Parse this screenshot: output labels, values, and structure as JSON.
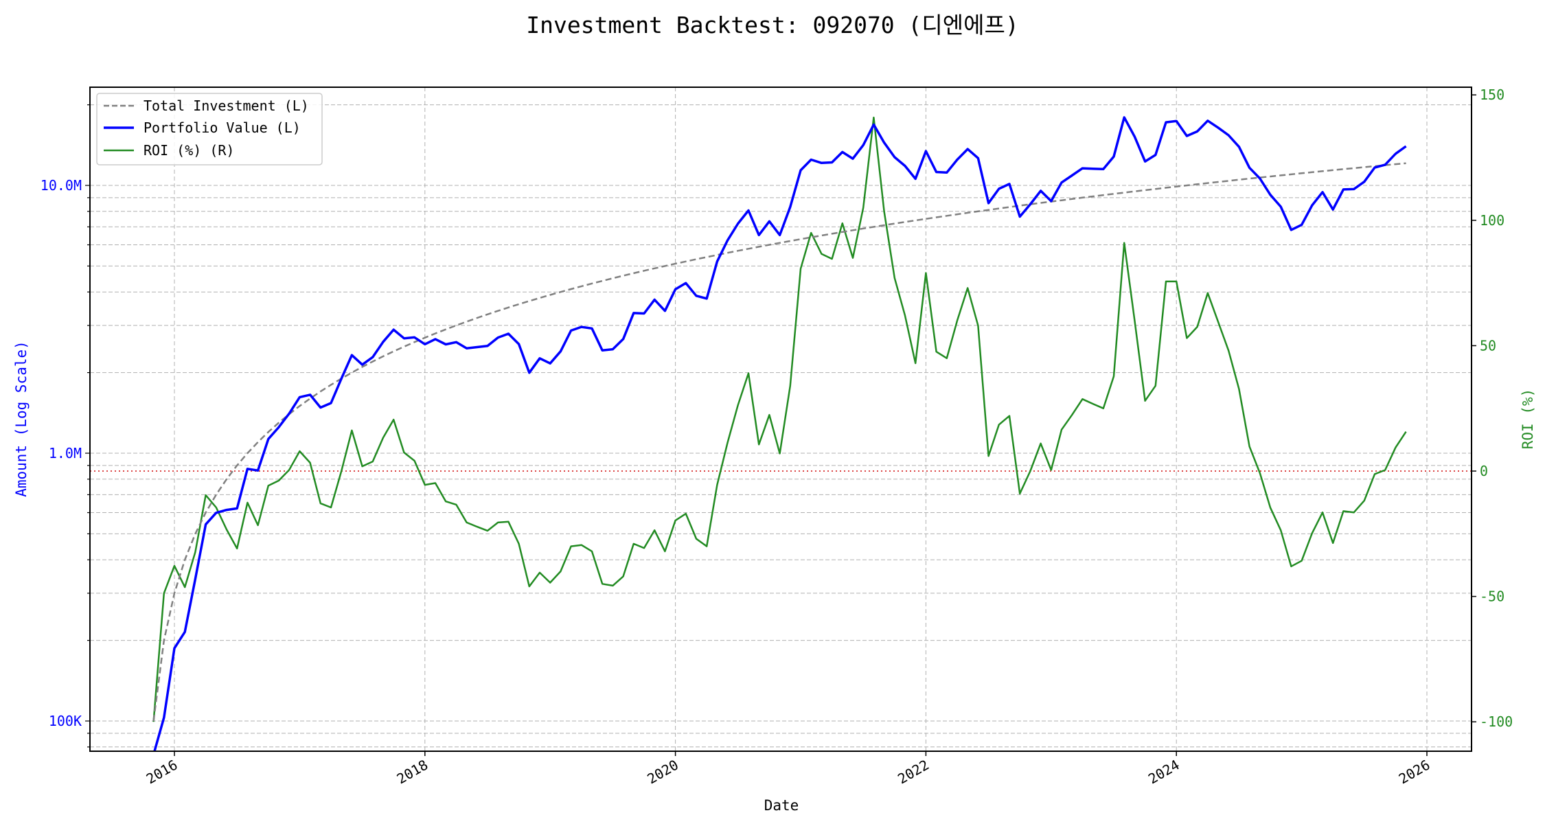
{
  "chart_data": {
    "type": "line",
    "title": "Investment Backtest: 092070 (디엔에프)",
    "xlabel": "Date",
    "ylabel_left": "Amount (Log Scale)",
    "ylabel_right": "ROI (%)",
    "y_left_scale": "log",
    "y_left_ticks": [
      {
        "value": 100000,
        "label": "100K"
      },
      {
        "value": 1000000,
        "label": "1.0M"
      },
      {
        "value": 10000000,
        "label": "10.0M"
      }
    ],
    "y_right_ticks": [
      -100,
      -50,
      0,
      50,
      100,
      150
    ],
    "x_ticks": [
      "2016",
      "2018",
      "2020",
      "2022",
      "2024",
      "2026"
    ],
    "xlim": [
      "2015-05",
      "2026-05"
    ],
    "ylim_left": [
      77600,
      23300000
    ],
    "ylim_right": [
      -112,
      153
    ],
    "grid": true,
    "legend_position": "top-left",
    "reference_line": {
      "axis": "right",
      "value": 0,
      "color": "#d62728",
      "style": "dotted"
    },
    "colors": {
      "total_investment": "#808080",
      "portfolio": "#0000ff",
      "roi": "#228b22",
      "left_axis": "#0000ff",
      "right_axis": "#228b22"
    },
    "dates": [
      "2015-11",
      "2015-12",
      "2016-01",
      "2016-02",
      "2016-03",
      "2016-04",
      "2016-05",
      "2016-06",
      "2016-07",
      "2016-08",
      "2016-09",
      "2016-10",
      "2016-11",
      "2016-12",
      "2017-01",
      "2017-02",
      "2017-03",
      "2017-04",
      "2017-05",
      "2017-06",
      "2017-07",
      "2017-08",
      "2017-09",
      "2017-10",
      "2017-11",
      "2017-12",
      "2018-01",
      "2018-02",
      "2018-03",
      "2018-04",
      "2018-05",
      "2018-06",
      "2018-07",
      "2018-08",
      "2018-09",
      "2018-10",
      "2018-11",
      "2018-12",
      "2019-01",
      "2019-02",
      "2019-03",
      "2019-04",
      "2019-05",
      "2019-06",
      "2019-07",
      "2019-08",
      "2019-09",
      "2019-10",
      "2019-11",
      "2019-12",
      "2020-01",
      "2020-02",
      "2020-03",
      "2020-04",
      "2020-05",
      "2020-06",
      "2020-07",
      "2020-08",
      "2020-09",
      "2020-10",
      "2020-11",
      "2020-12",
      "2021-01",
      "2021-02",
      "2021-03",
      "2021-04",
      "2021-05",
      "2021-06",
      "2021-07",
      "2021-08",
      "2021-09",
      "2021-10",
      "2021-11",
      "2021-12",
      "2022-01",
      "2022-02",
      "2022-03",
      "2022-04",
      "2022-05",
      "2022-06",
      "2022-07",
      "2022-08",
      "2022-09",
      "2022-10",
      "2022-11",
      "2022-12",
      "2023-01",
      "2023-02",
      "2023-03",
      "2023-04",
      "2023-05",
      "2023-06",
      "2023-07",
      "2023-08",
      "2023-09",
      "2023-10",
      "2023-11",
      "2023-12",
      "2024-01",
      "2024-02",
      "2024-03",
      "2024-04",
      "2024-05",
      "2024-06",
      "2024-07",
      "2024-08",
      "2024-09",
      "2024-10",
      "2024-11",
      "2024-12",
      "2025-01",
      "2025-02",
      "2025-03",
      "2025-04",
      "2025-05",
      "2025-06",
      "2025-07",
      "2025-08",
      "2025-09",
      "2025-10",
      "2025-11"
    ],
    "series": [
      {
        "name": "Total Investment (L)",
        "axis": "left",
        "style": "dashed",
        "values": [
          100000,
          200000,
          300000,
          400000,
          500000,
          600000,
          700000,
          800000,
          900000,
          1000000,
          1100000,
          1200000,
          1300000,
          1400000,
          1500000,
          1600000,
          1700000,
          1800000,
          1900000,
          2000000,
          2100000,
          2200000,
          2300000,
          2400000,
          2500000,
          2600000,
          2700000,
          2800000,
          2900000,
          3000000,
          3100000,
          3200000,
          3300000,
          3400000,
          3500000,
          3600000,
          3700000,
          3800000,
          3900000,
          4000000,
          4100000,
          4200000,
          4300000,
          4400000,
          4500000,
          4600000,
          4700000,
          4800000,
          4900000,
          5000000,
          5100000,
          5200000,
          5300000,
          5400000,
          5500000,
          5600000,
          5700000,
          5800000,
          5900000,
          6000000,
          6100000,
          6200000,
          6300000,
          6400000,
          6500000,
          6600000,
          6700000,
          6800000,
          6900000,
          7000000,
          7100000,
          7200000,
          7300000,
          7400000,
          7500000,
          7600000,
          7700000,
          7800000,
          7900000,
          8000000,
          8100000,
          8200000,
          8300000,
          8400000,
          8500000,
          8600000,
          8700000,
          8800000,
          8900000,
          9000000,
          9100000,
          9200000,
          9300000,
          9400000,
          9500000,
          9600000,
          9700000,
          9800000,
          9900000,
          10000000,
          10100000,
          10200000,
          10300000,
          10400000,
          10500000,
          10600000,
          10700000,
          10800000,
          10900000,
          11000000,
          11100000,
          11200000,
          11300000,
          11400000,
          11500000,
          11600000,
          11700000,
          11800000,
          11900000,
          12000000,
          12100000
        ]
      },
      {
        "name": "Portfolio Value (L)",
        "axis": "left",
        "style": "solid",
        "values": [
          0,
          103000,
          187000,
          215000,
          339000,
          542000,
          599000,
          614000,
          622000,
          874000,
          862000,
          1130000,
          1251000,
          1407000,
          1619000,
          1653000,
          1481000,
          1539000,
          1900000,
          2324000,
          2140000,
          2284000,
          2606000,
          2892000,
          2685000,
          2707000,
          2552000,
          2666000,
          2549000,
          2598000,
          2465000,
          2490000,
          2515000,
          2703000,
          2793000,
          2556000,
          1998000,
          2261000,
          2165000,
          2400000,
          2870000,
          2961000,
          2924000,
          2420000,
          2444000,
          2668000,
          3337000,
          3326000,
          3744000,
          3400000,
          4095000,
          4316000,
          3869000,
          3780000,
          5198000,
          6238000,
          7205000,
          8062000,
          6525000,
          7344000,
          6527000,
          8308000,
          11384000,
          12480000,
          12129000,
          12184000,
          13320000,
          12580000,
          14145000,
          16870000,
          14449000,
          12744000,
          11826000,
          10582000,
          13425000,
          11218000,
          11165000,
          12480000,
          13667000,
          12640000,
          8586000,
          9717000,
          10126000,
          7644000,
          8500000,
          9546000,
          8735000,
          10252000,
          10894000,
          11583000,
          11539000,
          11500000,
          12815000,
          17954000,
          15200000,
          12288000,
          12998000,
          17209000,
          17384000,
          15300000,
          15908000,
          17442000,
          16429000,
          15392000,
          13934000,
          11639000,
          10614000,
          9223000,
          8328000,
          6820000,
          7126000,
          8422000,
          9436000,
          8128000,
          9660000,
          9686000,
          10319000,
          11658000,
          11948000,
          13128000,
          14000000
        ]
      },
      {
        "name": "ROI (%) (R)",
        "axis": "right",
        "style": "solid",
        "values": [
          -100,
          -48.7,
          -37.8,
          -46.3,
          -32.3,
          -9.6,
          -14.5,
          -23.3,
          -30.9,
          -12.6,
          -21.6,
          -5.8,
          -3.8,
          0.5,
          7.9,
          3.3,
          -12.9,
          -14.5,
          0,
          16.2,
          1.9,
          3.8,
          13.3,
          20.5,
          7.4,
          4.1,
          -5.5,
          -4.8,
          -12.1,
          -13.4,
          -20.5,
          -22.2,
          -23.8,
          -20.5,
          -20.2,
          -29,
          -46,
          -40.5,
          -44.5,
          -40,
          -30,
          -29.5,
          -32,
          -45,
          -45.7,
          -42,
          -29,
          -30.7,
          -23.6,
          -32,
          -19.7,
          -17,
          -27,
          -30,
          -5.5,
          11.4,
          26.4,
          39,
          10.6,
          22.4,
          7,
          34,
          80.7,
          95,
          86.6,
          84.6,
          98.8,
          85,
          105,
          141,
          103.5,
          77,
          62,
          43,
          79,
          47.6,
          45,
          60,
          73,
          58,
          6,
          18.5,
          22,
          -9,
          0,
          11,
          0.4,
          16.5,
          22.4,
          28.7,
          26.8,
          25,
          37.8,
          91,
          60,
          28,
          34,
          75.6,
          75.6,
          53,
          57.5,
          71,
          59.5,
          48,
          32.7,
          9.8,
          -0.8,
          -14.6,
          -23.6,
          -38,
          -35.8,
          -24.8,
          -16.5,
          -28.7,
          -16,
          -16.5,
          -11.8,
          -1.2,
          0.4,
          9.4,
          15.7
        ]
      }
    ]
  }
}
